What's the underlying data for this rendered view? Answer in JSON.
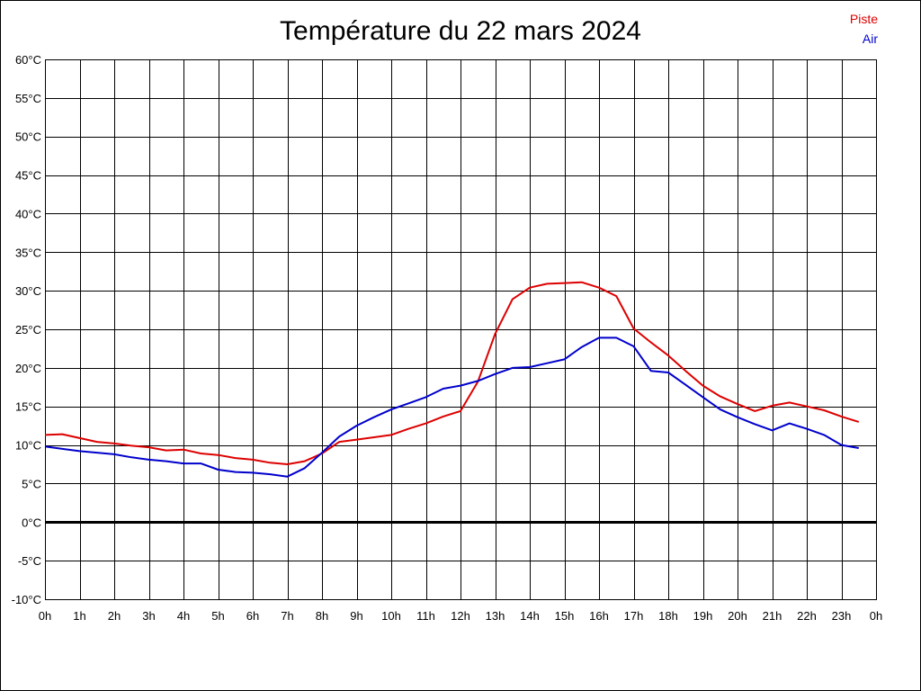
{
  "chart_data": {
    "type": "line",
    "title": "Température du 22 mars 2024",
    "xlabel": "",
    "ylabel": "",
    "ylim": [
      -10,
      60
    ],
    "xlim": [
      0,
      24
    ],
    "grid": true,
    "legend_position": "top-right",
    "y_ticks": [
      -10,
      -5,
      0,
      5,
      10,
      15,
      20,
      25,
      30,
      35,
      40,
      45,
      50,
      55,
      60
    ],
    "y_tick_labels": [
      "-10°C",
      "-5°C",
      "0°C",
      "5°C",
      "10°C",
      "15°C",
      "20°C",
      "25°C",
      "30°C",
      "35°C",
      "40°C",
      "45°C",
      "50°C",
      "55°C",
      "60°C"
    ],
    "x_ticks": [
      0,
      1,
      2,
      3,
      4,
      5,
      6,
      7,
      8,
      9,
      10,
      11,
      12,
      13,
      14,
      15,
      16,
      17,
      18,
      19,
      20,
      21,
      22,
      23,
      24
    ],
    "x_tick_labels": [
      "0h",
      "1h",
      "2h",
      "3h",
      "4h",
      "5h",
      "6h",
      "7h",
      "8h",
      "9h",
      "10h",
      "11h",
      "12h",
      "13h",
      "14h",
      "15h",
      "16h",
      "17h",
      "18h",
      "19h",
      "20h",
      "21h",
      "22h",
      "23h",
      "0h"
    ],
    "x": [
      0,
      0.5,
      1,
      1.5,
      2,
      2.5,
      3,
      3.5,
      4,
      4.5,
      5,
      5.5,
      6,
      6.5,
      7,
      7.5,
      8,
      8.5,
      9,
      9.5,
      10,
      10.5,
      11,
      11.5,
      12,
      12.5,
      13,
      13.5,
      14,
      14.5,
      15,
      15.5,
      16,
      16.5,
      17,
      17.5,
      18,
      18.5,
      19,
      19.5,
      20,
      20.5,
      21,
      21.5,
      22,
      22.5,
      23,
      23.5
    ],
    "series": [
      {
        "name": "Piste",
        "color": "#dd0000",
        "values": [
          11.3,
          11.4,
          10.9,
          10.4,
          10.2,
          9.9,
          9.7,
          9.3,
          9.4,
          8.9,
          8.7,
          8.3,
          8.1,
          7.7,
          7.5,
          7.9,
          8.9,
          10.4,
          10.7,
          11.0,
          11.3,
          12.1,
          12.8,
          13.7,
          14.4,
          18.2,
          24.4,
          28.9,
          30.4,
          30.9,
          31.0,
          31.1,
          30.4,
          29.3,
          25.1,
          23.3,
          21.6,
          19.6,
          17.7,
          16.3,
          15.3,
          14.4,
          15.1,
          15.5,
          15.0,
          14.5,
          13.7,
          13.0
        ]
      },
      {
        "name": "Air",
        "color": "#0000cc",
        "values": [
          9.8,
          9.5,
          9.2,
          9.0,
          8.8,
          8.4,
          8.1,
          7.9,
          7.6,
          7.6,
          6.8,
          6.5,
          6.4,
          6.2,
          5.9,
          7.0,
          9.0,
          11.1,
          12.5,
          13.6,
          14.6,
          15.4,
          16.2,
          17.3,
          17.7,
          18.3,
          19.2,
          20.0,
          20.1,
          20.6,
          21.1,
          22.7,
          23.9,
          23.9,
          22.8,
          19.6,
          19.4,
          17.8,
          16.2,
          14.6,
          13.6,
          12.7,
          11.9,
          12.8,
          12.1,
          11.3,
          10.0,
          9.6
        ]
      }
    ]
  }
}
